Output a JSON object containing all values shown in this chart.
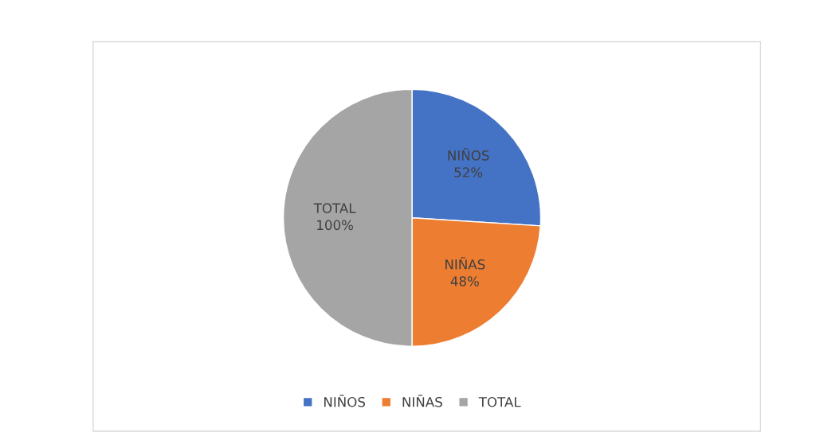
{
  "chart_data": {
    "type": "pie",
    "categories": [
      "NIÑOS",
      "NIÑAS",
      "TOTAL"
    ],
    "values": [
      52,
      48,
      100
    ],
    "colors": [
      "#4472c4",
      "#ed7d31",
      "#a5a5a5"
    ],
    "value_labels": [
      "52%",
      "48%",
      "100%"
    ],
    "legend": "bottom"
  }
}
